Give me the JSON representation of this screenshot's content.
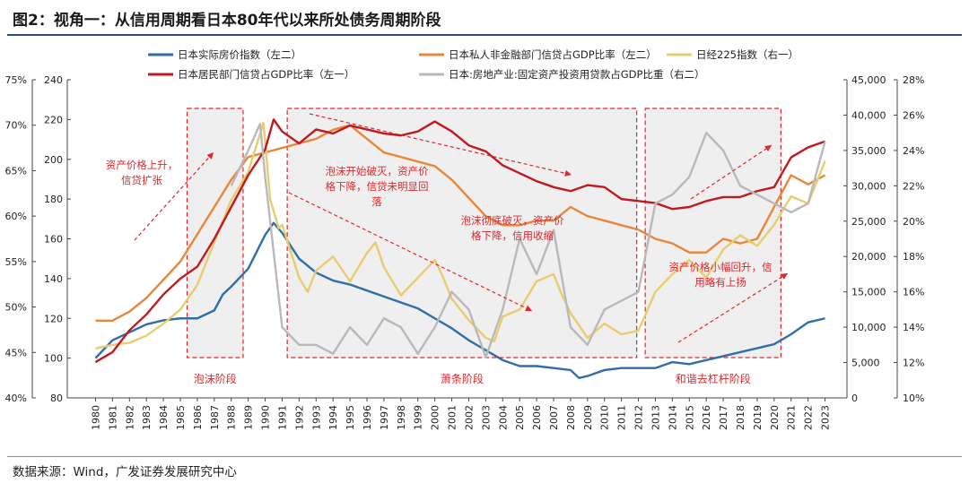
{
  "title": "图2：视角一：从信用周期看日本80年代以来所处债务周期阶段",
  "source": "数据来源：Wind，广发证券发展研究中心",
  "chart_data": {
    "type": "line",
    "years": [
      "1980",
      "1981",
      "1982",
      "1983",
      "1984",
      "1985",
      "1986",
      "1987",
      "1988",
      "1989",
      "1990",
      "1991",
      "1992",
      "1993",
      "1994",
      "1995",
      "1996",
      "1997",
      "1998",
      "1999",
      "2000",
      "2001",
      "2002",
      "2003",
      "2004",
      "2005",
      "2006",
      "2007",
      "2008",
      "2009",
      "2010",
      "2011",
      "2012",
      "2013",
      "2014",
      "2015",
      "2016",
      "2017",
      "2018",
      "2019",
      "2020",
      "2021",
      "2022",
      "2023"
    ],
    "axes": {
      "left_pct": {
        "min": 40,
        "max": 75,
        "ticks": [
          "40%",
          "45%",
          "50%",
          "55%",
          "60%",
          "65%",
          "70%",
          "75%"
        ]
      },
      "left_idx": {
        "min": 80,
        "max": 240,
        "ticks": [
          "80",
          "100",
          "120",
          "140",
          "160",
          "180",
          "200",
          "220",
          "240"
        ]
      },
      "right_nikkei": {
        "min": 0,
        "max": 45000,
        "ticks": [
          "0",
          "5,000",
          "10,000",
          "15,000",
          "20,000",
          "25,000",
          "30,000",
          "35,000",
          "40,000",
          "45,000"
        ]
      },
      "right_pct": {
        "min": 10,
        "max": 28,
        "ticks": [
          "10%",
          "12%",
          "14%",
          "16%",
          "18%",
          "20%",
          "22%",
          "24%",
          "26%",
          "28%"
        ]
      }
    },
    "legend": [
      {
        "name": "日本实际房价指数（左二）",
        "color": "#2f6ea8"
      },
      {
        "name": "日本私人非金融部门信贷占GDP比率（左二）",
        "color": "#e8873a"
      },
      {
        "name": "日经225指数（右一）",
        "color": "#e8cd6f"
      },
      {
        "name": "日本居民部门信贷占GDP比率（左一）",
        "color": "#c0191f"
      },
      {
        "name": "日本:房地产业:固定资产投资用贷款占GDP比重（右二）",
        "color": "#b9b9b9"
      }
    ],
    "series": [
      {
        "name": "日本实际房价指数（左二）",
        "axis": "left_idx",
        "color": "#2f6ea8",
        "x": [
          1980,
          1981,
          1982,
          1983,
          1984,
          1985,
          1986,
          1987,
          1987.5,
          1988,
          1989,
          1990,
          1990.5,
          1991,
          1992,
          1993,
          1994,
          1995,
          1996,
          1997,
          1998,
          1999,
          2000,
          2001,
          2002,
          2003,
          2004,
          2005,
          2006,
          2007,
          2008,
          2008.5,
          2009,
          2010,
          2011,
          2012,
          2013,
          2014,
          2015,
          2016,
          2017,
          2018,
          2019,
          2020,
          2021,
          2022,
          2023
        ],
        "values": [
          100,
          109,
          113,
          117,
          119,
          120,
          120,
          124,
          132,
          136,
          145,
          162,
          168,
          163,
          150,
          143,
          139,
          137,
          134,
          131,
          128,
          125,
          120,
          115,
          109,
          104,
          99,
          96,
          96,
          95,
          94,
          90,
          91,
          94,
          95,
          95,
          95,
          98,
          97,
          99,
          101,
          103,
          105,
          107,
          112,
          118,
          120
        ]
      },
      {
        "name": "日本私人非金融部门信贷占GDP比率（左二）",
        "axis": "left_pct",
        "color": "#e8873a",
        "x": [
          1980,
          1981,
          1982,
          1983,
          1984,
          1985,
          1986,
          1987,
          1988,
          1989,
          1990,
          1991,
          1992,
          1993,
          1994,
          1995,
          1996,
          1997,
          1998,
          1999,
          2000,
          2001,
          2002,
          2003,
          2004,
          2005,
          2006,
          2007,
          2008,
          2009,
          2010,
          2011,
          2012,
          2013,
          2014,
          2015,
          2016,
          2017,
          2018,
          2019,
          2020,
          2021,
          2022,
          2023
        ],
        "values": [
          48.5,
          48.5,
          49.5,
          51,
          53,
          55,
          58,
          61,
          64,
          66.5,
          67,
          67.5,
          68,
          68.5,
          69.5,
          70,
          68.5,
          67,
          66.5,
          66,
          65.5,
          64,
          62,
          60,
          59,
          59,
          59.5,
          59.5,
          61,
          60,
          59.5,
          59,
          58.5,
          57.5,
          57,
          56,
          56,
          57.5,
          57,
          57.5,
          61,
          64.5,
          63.5,
          64.5
        ]
      },
      {
        "name": "日经225指数（右一）",
        "axis": "right_nikkei",
        "color": "#e8cd6f",
        "x": [
          1980,
          1981,
          1982,
          1983,
          1984,
          1985,
          1986,
          1987,
          1988,
          1989,
          1989.9,
          1990.3,
          1990.8,
          1991,
          1992,
          1992.5,
          1993,
          1994,
          1995,
          1996,
          1996.5,
          1997,
          1998,
          1999,
          2000,
          2000.5,
          2001,
          2002,
          2003,
          2003.5,
          2004,
          2005,
          2006,
          2007,
          2007.5,
          2008,
          2009,
          2010,
          2011,
          2012,
          2013,
          2014,
          2015,
          2016,
          2017,
          2018,
          2019,
          2020,
          2021,
          2022,
          2023
        ],
        "values": [
          7000,
          7500,
          7800,
          8800,
          10500,
          12500,
          16000,
          22000,
          28000,
          32000,
          38900,
          28000,
          24000,
          24500,
          17000,
          15000,
          18000,
          20000,
          16500,
          20500,
          22000,
          18500,
          14500,
          17000,
          19500,
          17000,
          14000,
          11000,
          8500,
          8000,
          11500,
          12500,
          16500,
          17500,
          14500,
          12000,
          8500,
          10500,
          9000,
          9500,
          15000,
          17500,
          19500,
          17000,
          21000,
          23000,
          21500,
          24500,
          28500,
          27500,
          33500
        ]
      },
      {
        "name": "日本居民部门信贷占GDP比率（左一）",
        "axis": "left_idx",
        "color": "#c0191f",
        "x": [
          1980,
          1981,
          1982,
          1983,
          1984,
          1985,
          1986,
          1987,
          1988,
          1989,
          1990,
          1990.5,
          1991,
          1992,
          1993,
          1994,
          1995,
          1996,
          1997,
          1998,
          1999,
          2000,
          2001,
          2002,
          2003,
          2004,
          2005,
          2006,
          2007,
          2008,
          2009,
          2010,
          2011,
          2012,
          2013,
          2014,
          2015,
          2016,
          2017,
          2018,
          2019,
          2020,
          2021,
          2022,
          2023
        ],
        "values": [
          98,
          103,
          114,
          122,
          132,
          140,
          146,
          160,
          176,
          192,
          205,
          220,
          214,
          208,
          215,
          213,
          217,
          215,
          213,
          212,
          214,
          219,
          214,
          207,
          204,
          197,
          193,
          189,
          186,
          184,
          187,
          186,
          180,
          179,
          178,
          175,
          176,
          179,
          181,
          181,
          184,
          186,
          201,
          206,
          209
        ]
      },
      {
        "name": "日本:房地产业:固定资产投资用贷款占GDP比重（右二）",
        "axis": "right_pct",
        "color": "#b9b9b9",
        "x": [
          1988,
          1989,
          1989.7,
          1990,
          1991,
          1992,
          1993,
          1994,
          1995,
          1996,
          1997,
          1998,
          1999,
          2000,
          2001,
          2002,
          2003,
          2004,
          2005,
          2006,
          2007,
          2008,
          2009,
          2010,
          2011,
          2012,
          2013,
          2014,
          2015,
          2016,
          2017,
          2018,
          2019,
          2020,
          2021,
          2022,
          2023
        ],
        "values": [
          22,
          24,
          25.5,
          22.5,
          14,
          13,
          13,
          12.5,
          14,
          13,
          14.5,
          14,
          12.5,
          14,
          16,
          15,
          12.3,
          15,
          19,
          17,
          19.5,
          14,
          13,
          15,
          15.5,
          16,
          21,
          21.5,
          22.5,
          25,
          24,
          22,
          21.5,
          21,
          20.5,
          21,
          24.5
        ]
      }
    ],
    "phases": [
      {
        "label": "泡沫阶段",
        "from": 1985.9,
        "to": 1989.2
      },
      {
        "label": "萧条阶段",
        "from": 1991.8,
        "to": 2012.4
      },
      {
        "label": "和谐去杠杆阶段",
        "from": 2012.9,
        "to": 2020.9
      }
    ],
    "annotations": [
      {
        "lines": [
          "资产价格上升，",
          "信贷扩张"
        ]
      },
      {
        "lines": [
          "泡沫开始破灭，资产价",
          "格下降，信贷未明显回",
          "落"
        ]
      },
      {
        "lines": [
          "泡沫彻底破灭，资产价",
          "格下降，信用收缩"
        ]
      },
      {
        "lines": [
          "资产价格小幅回升，信",
          "用略有上扬"
        ]
      }
    ]
  }
}
